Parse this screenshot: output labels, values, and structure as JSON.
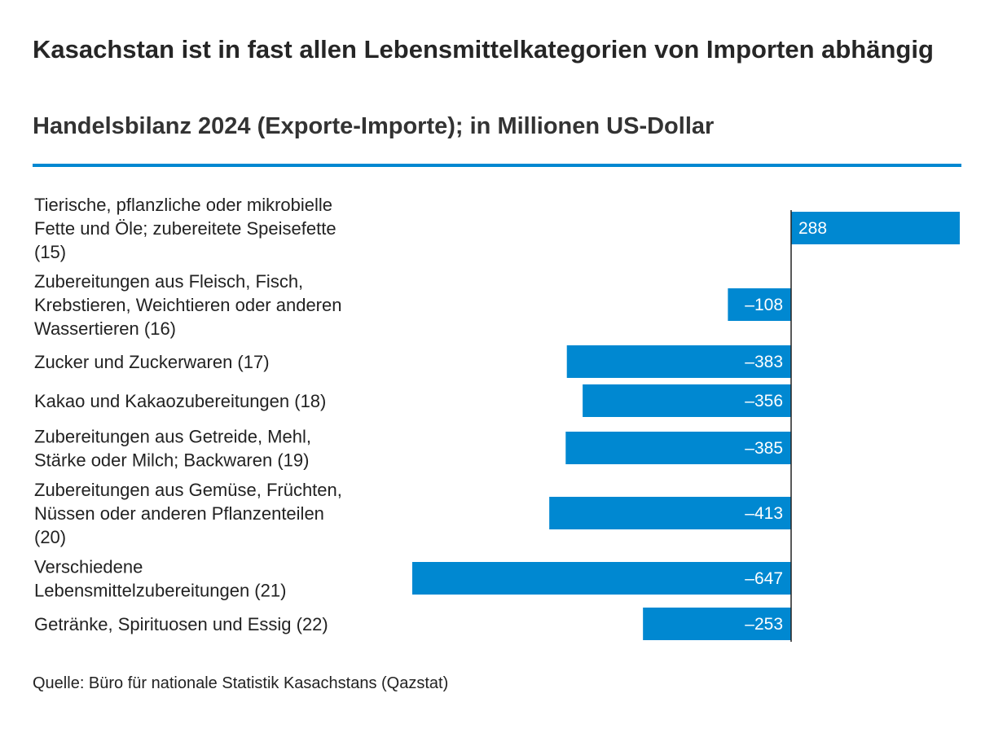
{
  "header": {
    "title": "Kasachstan ist in fast allen Lebensmittelkategorien von Importen abhängig",
    "subtitle": "Handelsbilanz 2024 (Exporte-Importe); in Millionen US-Dollar"
  },
  "footer": {
    "source": "Quelle: Büro für nationale Statistik Kasachstans (Qazstat)"
  },
  "colors": {
    "bar": "#0088d1",
    "rule": "#0088d1",
    "axis": "#222222"
  },
  "chart_data": {
    "type": "bar",
    "orientation": "horizontal",
    "title": "Kasachstan ist in fast allen Lebensmittelkategorien von Importen abhängig",
    "subtitle": "Handelsbilanz 2024 (Exporte-Importe); in Millionen US-Dollar",
    "categories": [
      [
        "Tierische, pflanzliche oder mikrobielle",
        "Fette und Öle; zubereitete Speisefette",
        "(15)"
      ],
      [
        "Zubereitungen aus Fleisch, Fisch,",
        "Krebstieren, Weichtieren oder anderen",
        "Wassertieren (16)"
      ],
      [
        "Zucker und Zuckerwaren (17)"
      ],
      [
        "Kakao und Kakaozubereitungen (18)"
      ],
      [
        "Zubereitungen aus Getreide, Mehl,",
        "Stärke oder Milch; Backwaren (19)"
      ],
      [
        "Zubereitungen aus Gemüse, Früchten,",
        "Nüssen oder anderen Pflanzenteilen",
        "(20)"
      ],
      [
        "Verschiedene",
        "Lebensmittelzubereitungen (21)"
      ],
      [
        "Getränke, Spirituosen und Essig (22)"
      ]
    ],
    "values": [
      288,
      -108,
      -383,
      -356,
      -385,
      -413,
      -647,
      -253
    ],
    "value_labels": [
      "288",
      "–108",
      "–383",
      "–356",
      "–385",
      "–413",
      "–647",
      "–253"
    ],
    "xlim": [
      -647,
      288
    ],
    "grid": false,
    "legend": "none"
  }
}
